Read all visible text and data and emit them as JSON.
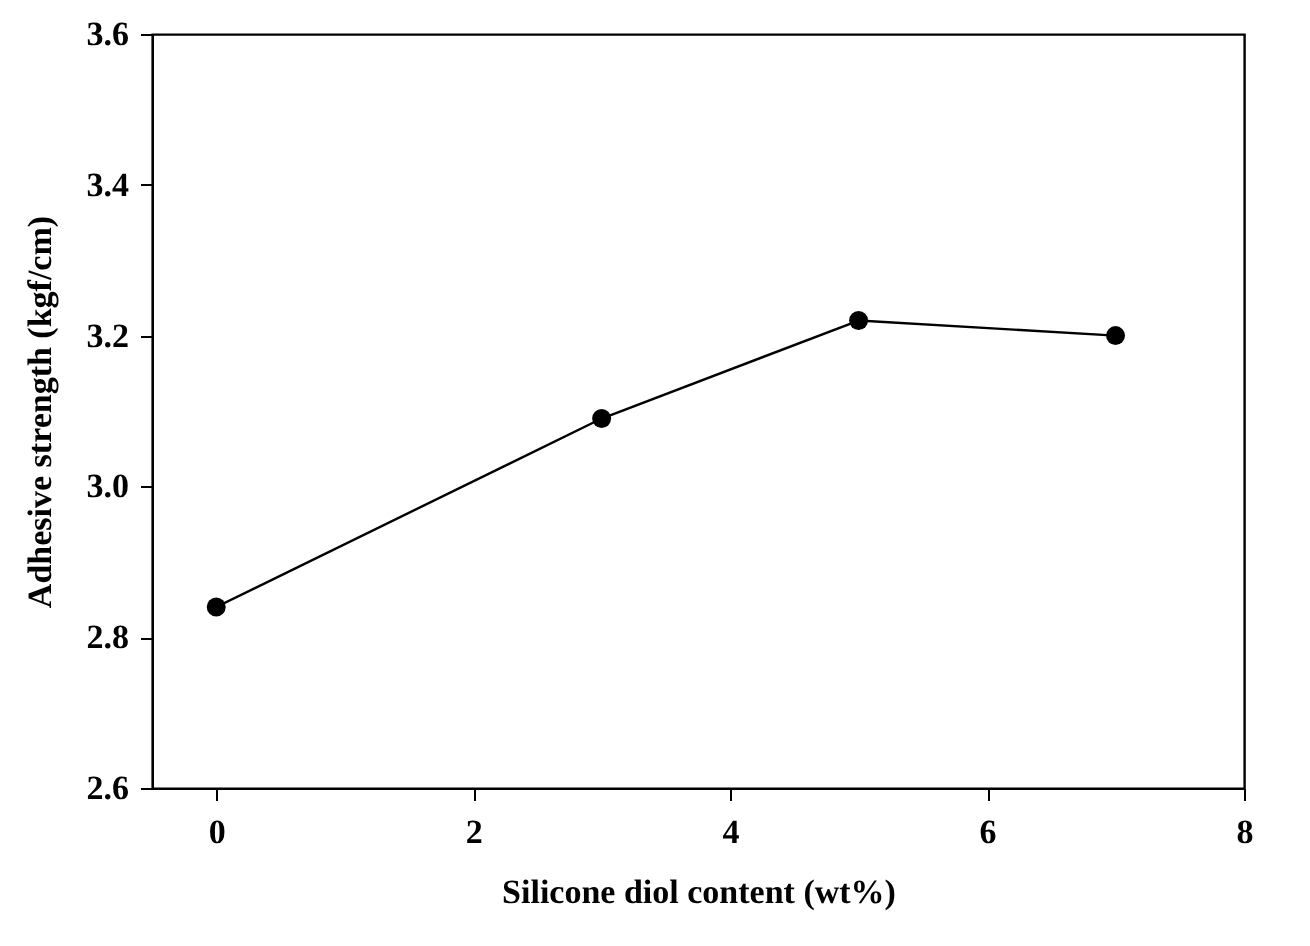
{
  "chart_data": {
    "type": "line",
    "xlabel": "Silicone diol content (wt%)",
    "ylabel": "Adhesive strength (kgf/cm)",
    "x": [
      0,
      3,
      5,
      7
    ],
    "series": [
      {
        "color": "#000000",
        "values": [
          2.84,
          3.09,
          3.22,
          3.2
        ]
      }
    ],
    "xlim": [
      -0.5,
      8
    ],
    "xticks": [
      0,
      2,
      4,
      6,
      8
    ],
    "ylim": [
      2.6,
      3.6
    ],
    "yticks": [
      {
        "value": 2.6,
        "label": "2.6"
      },
      {
        "value": 2.8,
        "label": "2.8"
      },
      {
        "value": 3.0,
        "label": "3.0"
      },
      {
        "value": 3.2,
        "label": "3.2"
      },
      {
        "value": 3.4,
        "label": "3.4"
      },
      {
        "value": 3.6,
        "label": "3.6"
      }
    ],
    "marker": "circle",
    "line_style": "solid",
    "grid": false
  }
}
